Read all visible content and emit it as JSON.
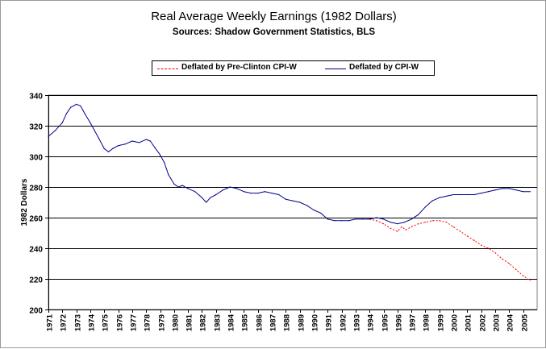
{
  "chart_data": {
    "type": "line",
    "title": "Real Average Weekly Earnings (1982 Dollars)",
    "subtitle": "Sources: Shadow Government Statistics, BLS",
    "ylabel": "1982 Dollars",
    "xlabel": "",
    "ylim": [
      200,
      340
    ],
    "yticks": [
      200,
      220,
      240,
      260,
      280,
      300,
      320,
      340
    ],
    "xlim": [
      1971,
      2006
    ],
    "xticks": [
      "1971",
      "1972",
      "1973",
      "1974",
      "1975",
      "1976",
      "1977",
      "1978",
      "1979",
      "1980",
      "1981",
      "1982",
      "1983",
      "1984",
      "1985",
      "1986",
      "1987",
      "1988",
      "1989",
      "1990",
      "1991",
      "1992",
      "1993",
      "1994",
      "1995",
      "1996",
      "1997",
      "1998",
      "1999",
      "2000",
      "2001",
      "2002",
      "2003",
      "2004",
      "2005"
    ],
    "grid": "horizontal",
    "legend_position": "top-center",
    "series": [
      {
        "name": "Deflated by Pre-Clinton CPI-W",
        "color": "#ff0000",
        "style": "dashed",
        "x": [
          1994.0,
          1994.5,
          1995.0,
          1995.5,
          1996.0,
          1996.3,
          1996.6,
          1997.0,
          1997.5,
          1998.0,
          1998.5,
          1999.0,
          1999.5,
          2000.0,
          2000.5,
          2001.0,
          2001.5,
          2002.0,
          2002.5,
          2003.0,
          2003.5,
          2004.0,
          2004.5,
          2005.0,
          2005.5
        ],
        "y": [
          259,
          258,
          256,
          253,
          251,
          254,
          252,
          254,
          256,
          257,
          258,
          258,
          257,
          254,
          251,
          248,
          245,
          242,
          240,
          237,
          233,
          230,
          226,
          222,
          219
        ]
      },
      {
        "name": "Deflated by CPI-W",
        "color": "#00008b",
        "style": "solid",
        "x": [
          1971.0,
          1971.5,
          1972.0,
          1972.3,
          1972.6,
          1973.0,
          1973.3,
          1973.6,
          1974.0,
          1974.3,
          1974.6,
          1975.0,
          1975.3,
          1975.6,
          1976.0,
          1976.5,
          1977.0,
          1977.5,
          1978.0,
          1978.3,
          1978.6,
          1979.0,
          1979.3,
          1979.6,
          1980.0,
          1980.3,
          1980.6,
          1981.0,
          1981.5,
          1982.0,
          1982.3,
          1982.6,
          1983.0,
          1983.5,
          1984.0,
          1984.5,
          1985.0,
          1985.5,
          1986.0,
          1986.5,
          1987.0,
          1987.5,
          1988.0,
          1988.5,
          1989.0,
          1989.5,
          1990.0,
          1990.5,
          1991.0,
          1991.5,
          1992.0,
          1992.5,
          1993.0,
          1993.5,
          1994.0,
          1994.5,
          1995.0,
          1995.5,
          1996.0,
          1996.5,
          1997.0,
          1997.5,
          1998.0,
          1998.5,
          1999.0,
          1999.5,
          2000.0,
          2000.5,
          2001.0,
          2001.5,
          2002.0,
          2002.5,
          2003.0,
          2003.5,
          2004.0,
          2004.5,
          2005.0,
          2005.5
        ],
        "y": [
          313,
          317,
          322,
          328,
          332,
          334,
          333,
          328,
          322,
          317,
          312,
          305,
          303,
          305,
          307,
          308,
          310,
          309,
          311,
          310,
          306,
          301,
          296,
          288,
          282,
          280,
          281,
          279,
          277,
          273,
          270,
          273,
          275,
          278,
          280,
          279,
          277,
          276,
          276,
          277,
          276,
          275,
          272,
          271,
          270,
          268,
          265,
          263,
          259,
          258,
          258,
          258,
          259,
          259,
          259,
          260,
          259,
          257,
          256,
          257,
          259,
          262,
          267,
          271,
          273,
          274,
          275,
          275,
          275,
          275,
          276,
          277,
          278,
          279,
          279,
          278,
          277,
          277
        ]
      }
    ]
  }
}
